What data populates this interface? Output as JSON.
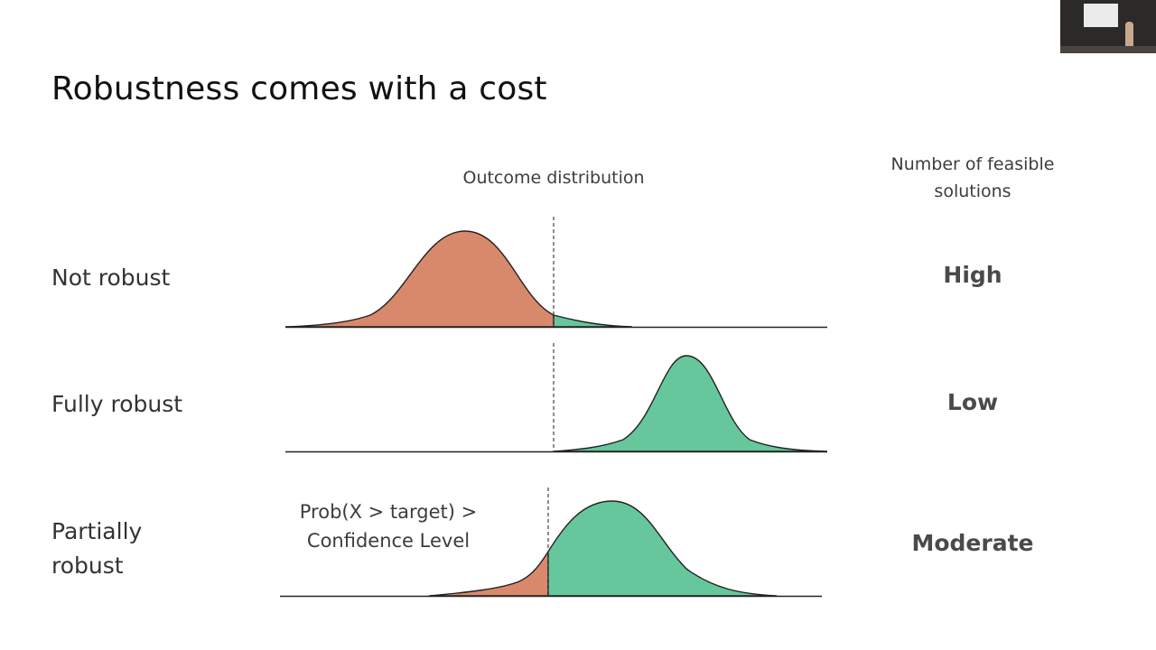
{
  "slide": {
    "title": "Robustness comes with a cost",
    "outcome_header": "Outcome distribution",
    "feasible_header_line1": "Number of feasible",
    "feasible_header_line2": "solutions"
  },
  "rows": [
    {
      "label_line1": "Not robust",
      "label_line2": "",
      "feasible": "High"
    },
    {
      "label_line1": "Fully robust",
      "label_line2": "",
      "feasible": "Low"
    },
    {
      "label_line1": "Partially",
      "label_line2": "robust",
      "feasible": "Moderate"
    }
  ],
  "annotation": {
    "line1": "Prob(X > target) >",
    "line2": "Confidence Level"
  },
  "colors": {
    "below_target": "#d9896b",
    "above_target": "#66c79c",
    "axis": "#222222"
  },
  "icons": {
    "presenter": "presenter-camera-thumbnail"
  }
}
